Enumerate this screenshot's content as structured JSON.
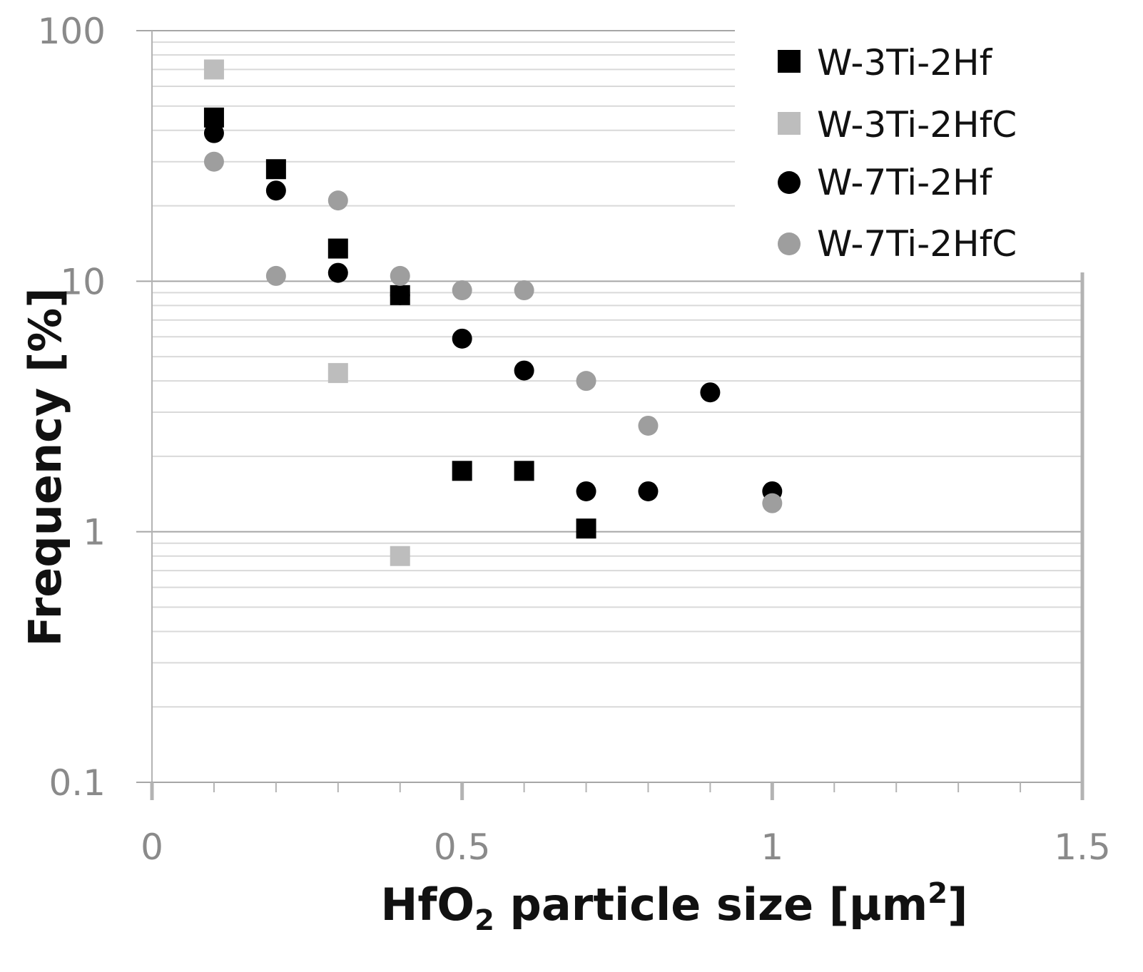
{
  "chart_data": {
    "type": "scatter",
    "x_label_main": "HfO",
    "x_label_sub": "2",
    "x_label_rest": " particle size [µm",
    "x_label_sup": "2",
    "x_label_end": "]",
    "ylabel": "Frequency [%]",
    "xlim": [
      0,
      1.5
    ],
    "ylim": [
      0.1,
      100
    ],
    "y_scale": "log",
    "x_ticks": [
      0,
      0.5,
      1,
      1.5
    ],
    "x_tick_labels": [
      "0",
      "0.5",
      "1",
      "1.5"
    ],
    "y_ticks": [
      0.1,
      1,
      10,
      100
    ],
    "y_tick_labels": [
      "0.1",
      "1",
      "10",
      "100"
    ],
    "grid": true,
    "legend_position": "top-right",
    "series": [
      {
        "name": "W-3Ti-2Hf",
        "marker": "square",
        "color": "#000000",
        "x": [
          0.1,
          0.2,
          0.3,
          0.4,
          0.5,
          0.6,
          0.7
        ],
        "y": [
          45,
          28,
          13.5,
          8.8,
          1.75,
          1.75,
          1.03
        ]
      },
      {
        "name": "W-3Ti-2HfC",
        "marker": "square",
        "color": "#bdbdbd",
        "x": [
          0.1,
          0.3,
          0.4
        ],
        "y": [
          70,
          4.3,
          0.8
        ]
      },
      {
        "name": "W-7Ti-2Hf",
        "marker": "circle",
        "color": "#000000",
        "x": [
          0.1,
          0.2,
          0.3,
          0.4,
          0.5,
          0.6,
          0.7,
          0.8,
          0.9,
          1.0
        ],
        "y": [
          39,
          23,
          10.8,
          8.8,
          5.9,
          4.4,
          1.45,
          1.45,
          3.6,
          1.45
        ]
      },
      {
        "name": "W-7Ti-2HfC",
        "marker": "circle",
        "color": "#9e9e9e",
        "x": [
          0.1,
          0.2,
          0.3,
          0.4,
          0.5,
          0.6,
          0.7,
          0.8,
          1.0
        ],
        "y": [
          30,
          10.5,
          21,
          10.5,
          9.2,
          9.2,
          4.0,
          2.65,
          1.3
        ]
      }
    ]
  }
}
